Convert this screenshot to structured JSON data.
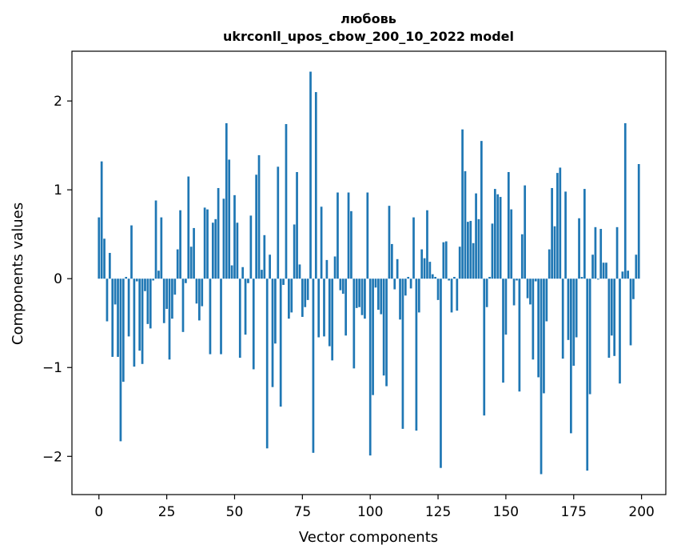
{
  "chart_data": {
    "type": "bar",
    "title": "любовь",
    "subtitle": "ukrconll_upos_cbow_200_10_2022 model",
    "xlabel": "Vector components",
    "ylabel": "Components values",
    "xlim": [
      -9.95,
      208.95
    ],
    "ylim": [
      -2.43,
      2.56
    ],
    "xticks": [
      0,
      25,
      50,
      75,
      100,
      125,
      150,
      175,
      200
    ],
    "xtick_labels": [
      "0",
      "25",
      "50",
      "75",
      "100",
      "125",
      "150",
      "175",
      "200"
    ],
    "yticks": [
      -2,
      -1,
      0,
      1,
      2
    ],
    "ytick_labels": [
      "−2",
      "−1",
      "0",
      "1",
      "2"
    ],
    "grid": false,
    "bar_color": "#1f77b4",
    "x": [
      0,
      1,
      2,
      3,
      4,
      5,
      6,
      7,
      8,
      9,
      10,
      11,
      12,
      13,
      14,
      15,
      16,
      17,
      18,
      19,
      20,
      21,
      22,
      23,
      24,
      25,
      26,
      27,
      28,
      29,
      30,
      31,
      32,
      33,
      34,
      35,
      36,
      37,
      38,
      39,
      40,
      41,
      42,
      43,
      44,
      45,
      46,
      47,
      48,
      49,
      50,
      51,
      52,
      53,
      54,
      55,
      56,
      57,
      58,
      59,
      60,
      61,
      62,
      63,
      64,
      65,
      66,
      67,
      68,
      69,
      70,
      71,
      72,
      73,
      74,
      75,
      76,
      77,
      78,
      79,
      80,
      81,
      82,
      83,
      84,
      85,
      86,
      87,
      88,
      89,
      90,
      91,
      92,
      93,
      94,
      95,
      96,
      97,
      98,
      99,
      100,
      101,
      102,
      103,
      104,
      105,
      106,
      107,
      108,
      109,
      110,
      111,
      112,
      113,
      114,
      115,
      116,
      117,
      118,
      119,
      120,
      121,
      122,
      123,
      124,
      125,
      126,
      127,
      128,
      129,
      130,
      131,
      132,
      133,
      134,
      135,
      136,
      137,
      138,
      139,
      140,
      141,
      142,
      143,
      144,
      145,
      146,
      147,
      148,
      149,
      150,
      151,
      152,
      153,
      154,
      155,
      156,
      157,
      158,
      159,
      160,
      161,
      162,
      163,
      164,
      165,
      166,
      167,
      168,
      169,
      170,
      171,
      172,
      173,
      174,
      175,
      176,
      177,
      178,
      179,
      180,
      181,
      182,
      183,
      184,
      185,
      186,
      187,
      188,
      189,
      190,
      191,
      192,
      193,
      194,
      195,
      196,
      197,
      198,
      199
    ],
    "values": [
      0.69,
      1.32,
      0.45,
      -0.48,
      0.29,
      -0.88,
      -0.29,
      -0.88,
      -1.83,
      -1.16,
      0.02,
      -0.65,
      0.6,
      -0.99,
      -0.03,
      -0.81,
      -0.96,
      -0.14,
      -0.51,
      -0.56,
      -0.02,
      0.88,
      0.09,
      0.69,
      -0.5,
      -0.34,
      -0.91,
      -0.45,
      -0.18,
      0.33,
      0.77,
      -0.6,
      -0.05,
      1.15,
      0.36,
      0.57,
      -0.28,
      -0.47,
      -0.31,
      0.8,
      0.78,
      -0.85,
      0.63,
      0.67,
      1.02,
      -0.85,
      0.9,
      1.75,
      1.34,
      0.15,
      0.94,
      0.63,
      -0.89,
      0.13,
      -0.63,
      -0.05,
      0.71,
      -1.02,
      1.17,
      1.39,
      0.1,
      0.49,
      -1.91,
      0.27,
      -1.22,
      -0.73,
      1.26,
      -1.44,
      -0.07,
      1.74,
      -0.45,
      -0.38,
      0.61,
      1.2,
      0.16,
      -0.43,
      -0.32,
      -0.24,
      2.33,
      -1.96,
      2.1,
      -0.66,
      0.81,
      -0.65,
      0.21,
      -0.76,
      -0.92,
      0.25,
      0.97,
      -0.13,
      -0.17,
      -0.64,
      0.97,
      0.76,
      -1.01,
      -0.33,
      -0.32,
      -0.41,
      -0.45,
      0.97,
      -1.99,
      -1.31,
      -0.1,
      -0.35,
      -0.4,
      -1.09,
      -1.21,
      0.82,
      0.39,
      -0.12,
      0.22,
      -0.46,
      -1.69,
      -0.19,
      0.02,
      -0.11,
      0.69,
      -1.71,
      -0.38,
      0.33,
      0.23,
      0.77,
      0.19,
      0.05,
      0.02,
      -0.24,
      -2.13,
      0.41,
      0.42,
      -0.02,
      -0.38,
      0.02,
      -0.36,
      0.36,
      1.68,
      1.21,
      0.64,
      0.65,
      0.4,
      0.96,
      0.67,
      1.55,
      -1.54,
      -0.32,
      0.02,
      0.62,
      1.01,
      0.95,
      0.92,
      -1.17,
      -0.63,
      1.2,
      0.78,
      -0.3,
      -0.02,
      -1.27,
      0.5,
      1.05,
      -0.22,
      -0.29,
      -0.91,
      -0.03,
      -1.11,
      -2.2,
      -1.29,
      -0.48,
      0.33,
      1.02,
      0.59,
      1.19,
      1.25,
      -0.9,
      0.98,
      -0.69,
      -1.74,
      -0.98,
      -0.66,
      0.68,
      0.02,
      1.01,
      -2.16,
      -1.3,
      0.27,
      0.58,
      -0.01,
      0.56,
      0.18,
      0.18,
      -0.89,
      -0.64,
      -0.87,
      0.58,
      -1.18,
      0.08,
      1.75,
      0.09,
      -0.75,
      -0.23,
      0.27,
      1.29
    ]
  }
}
